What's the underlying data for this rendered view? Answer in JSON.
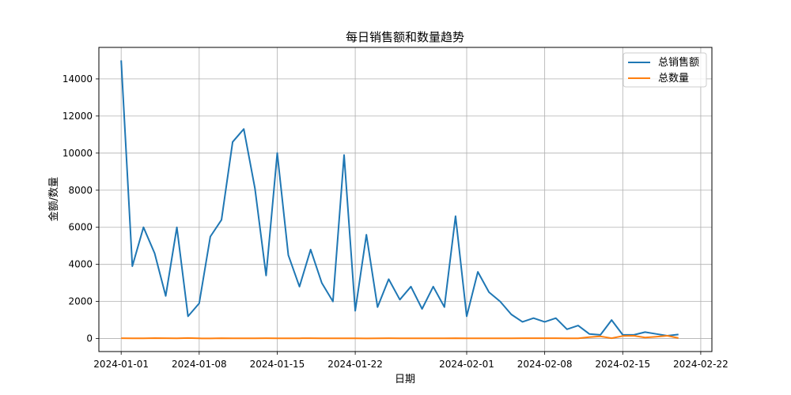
{
  "chart_data": {
    "type": "line",
    "title": "每日销售额和数量趋势",
    "xlabel": "日期",
    "ylabel": "金额/数量",
    "x_dates": [
      "2024-01-01",
      "2024-01-02",
      "2024-01-03",
      "2024-01-04",
      "2024-01-05",
      "2024-01-06",
      "2024-01-07",
      "2024-01-08",
      "2024-01-09",
      "2024-01-10",
      "2024-01-11",
      "2024-01-12",
      "2024-01-13",
      "2024-01-14",
      "2024-01-15",
      "2024-01-16",
      "2024-01-17",
      "2024-01-18",
      "2024-01-19",
      "2024-01-20",
      "2024-01-21",
      "2024-01-22",
      "2024-01-23",
      "2024-01-24",
      "2024-01-25",
      "2024-01-26",
      "2024-01-27",
      "2024-01-28",
      "2024-01-29",
      "2024-01-30",
      "2024-01-31",
      "2024-02-01",
      "2024-02-02",
      "2024-02-03",
      "2024-02-04",
      "2024-02-05",
      "2024-02-06",
      "2024-02-07",
      "2024-02-08",
      "2024-02-09",
      "2024-02-10",
      "2024-02-11",
      "2024-02-12",
      "2024-02-13",
      "2024-02-14",
      "2024-02-15",
      "2024-02-16",
      "2024-02-17",
      "2024-02-18",
      "2024-02-19",
      "2024-02-20"
    ],
    "x_ticks": [
      "2024-01-01",
      "2024-01-08",
      "2024-01-15",
      "2024-01-22",
      "2024-02-01",
      "2024-02-08",
      "2024-02-15",
      "2024-02-22"
    ],
    "x_range": [
      "2023-12-30",
      "2024-02-23"
    ],
    "y_ticks": [
      0,
      2000,
      4000,
      6000,
      8000,
      10000,
      12000,
      14000
    ],
    "ylim": [
      -700,
      15700
    ],
    "grid": true,
    "legend_position": "top-right",
    "series": [
      {
        "name": "总销售额",
        "color": "#1f77b4",
        "values": [
          15000,
          3900,
          6000,
          4600,
          2300,
          6000,
          1200,
          1900,
          5500,
          6400,
          10600,
          11300,
          8100,
          3400,
          10000,
          4500,
          2800,
          4800,
          3000,
          2000,
          9900,
          1500,
          5600,
          1700,
          3200,
          2100,
          2800,
          1600,
          2800,
          1700,
          6600,
          1200,
          3600,
          2500,
          2000,
          1300,
          900,
          1100,
          900,
          1100,
          500,
          700,
          250,
          200,
          1000,
          200,
          200,
          350,
          250,
          150,
          220
        ]
      },
      {
        "name": "总数量",
        "color": "#ff7f0e",
        "values": [
          20,
          15,
          10,
          25,
          20,
          15,
          30,
          10,
          8,
          20,
          15,
          12,
          10,
          18,
          14,
          12,
          16,
          20,
          14,
          12,
          10,
          15,
          8,
          14,
          18,
          16,
          12,
          10,
          14,
          12,
          18,
          10,
          14,
          12,
          16,
          14,
          18,
          20,
          22,
          18,
          14,
          16,
          80,
          120,
          20,
          140,
          150,
          60,
          100,
          150,
          30
        ]
      }
    ]
  }
}
